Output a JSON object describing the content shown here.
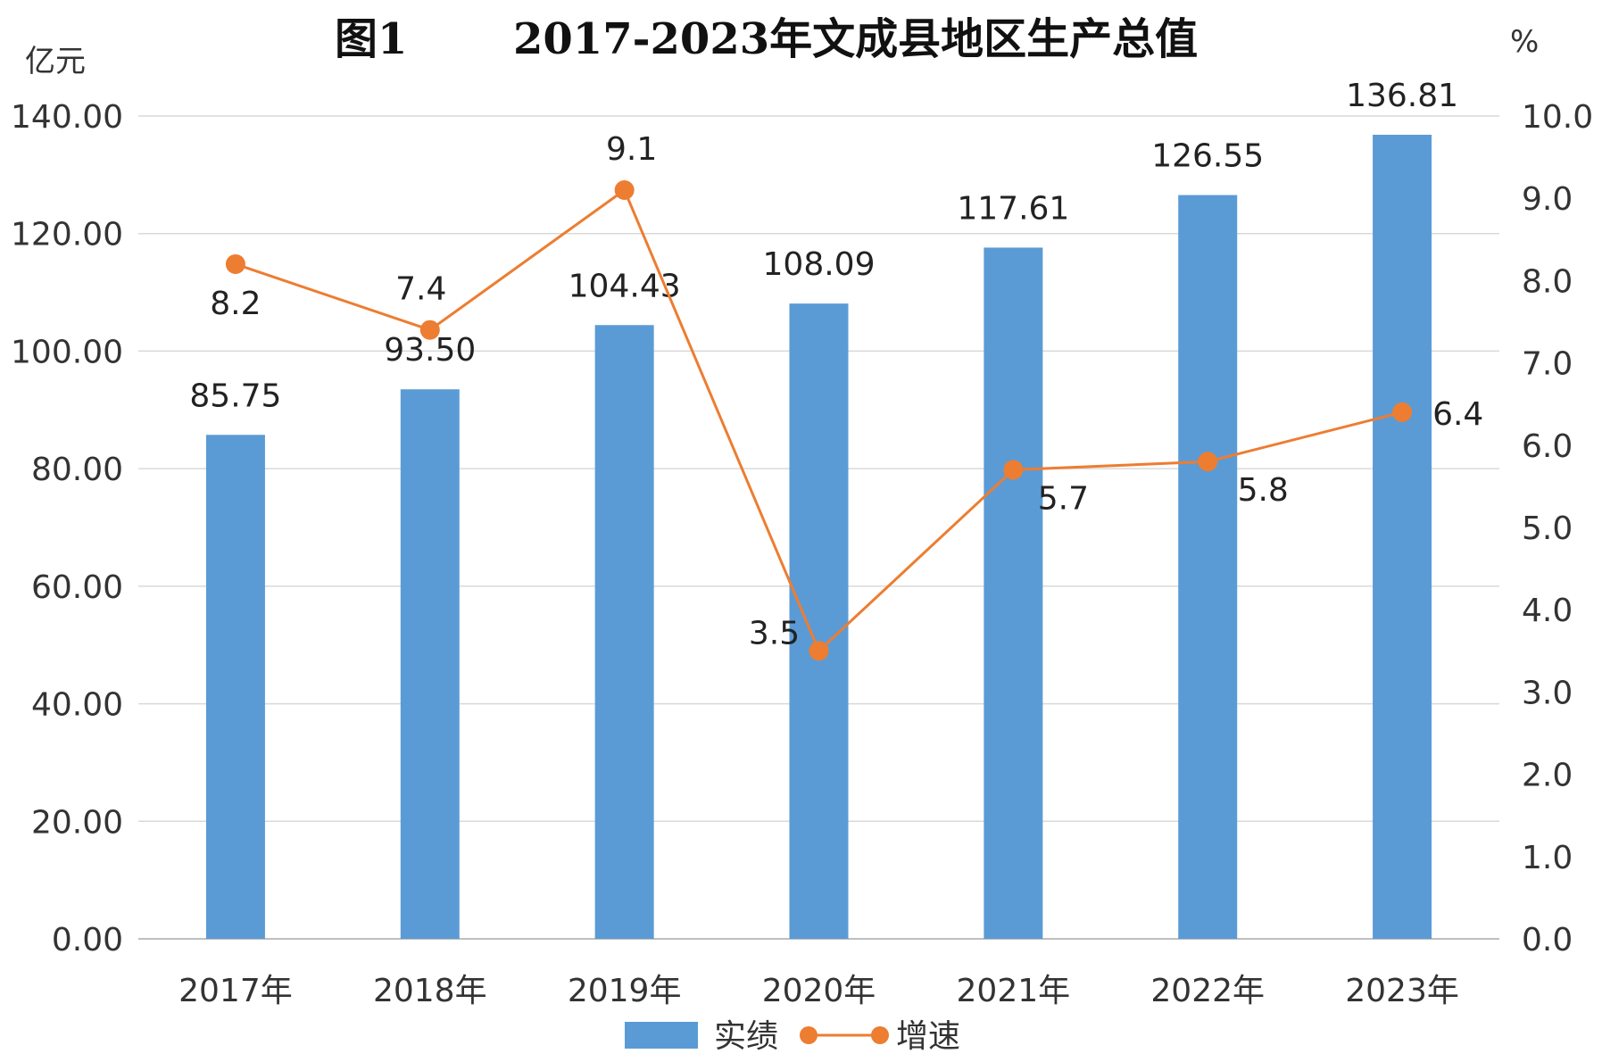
{
  "chart_data": {
    "type": "bar",
    "title_prefix": "图1",
    "title": "2017-2023年文成县地区生产总值",
    "left_unit": "亿元",
    "right_unit": "%",
    "categories": [
      "2017年",
      "2018年",
      "2019年",
      "2020年",
      "2021年",
      "2022年",
      "2023年"
    ],
    "series": [
      {
        "name": "实绩",
        "type": "bar",
        "axis": "left",
        "color": "#5B9BD5",
        "values": [
          85.75,
          93.5,
          104.43,
          108.09,
          117.61,
          126.55,
          136.81
        ],
        "labels": [
          "85.75",
          "93.50",
          "104.43",
          "108.09",
          "117.61",
          "126.55",
          "136.81"
        ]
      },
      {
        "name": "增速",
        "type": "line",
        "axis": "right",
        "color": "#ED7D31",
        "values": [
          8.2,
          7.4,
          9.1,
          3.5,
          5.7,
          5.8,
          6.4
        ],
        "labels": [
          "8.2",
          "7.4",
          "9.1",
          "3.5",
          "5.7",
          "5.8",
          "6.4"
        ]
      }
    ],
    "y_left": {
      "min": 0,
      "max": 140,
      "step": 20,
      "tick_labels": [
        "0.00",
        "20.00",
        "40.00",
        "60.00",
        "80.00",
        "100.00",
        "120.00",
        "140.00"
      ]
    },
    "y_right": {
      "min": 0,
      "max": 10,
      "step": 1,
      "tick_labels": [
        "0.0",
        "1.0",
        "2.0",
        "3.0",
        "4.0",
        "5.0",
        "6.0",
        "7.0",
        "8.0",
        "9.0",
        "10.0"
      ]
    },
    "grid": true,
    "legend_position": "bottom"
  }
}
